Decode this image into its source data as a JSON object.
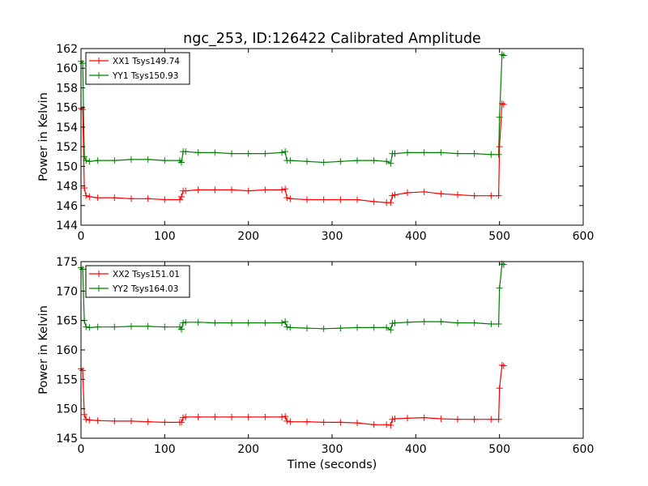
{
  "title": "ngc_253, ID:126422 Calibrated Amplitude",
  "chart_data": [
    {
      "type": "line",
      "title": "ngc_253, ID:126422 Calibrated Amplitude",
      "xlabel": "",
      "ylabel": "Power in Kelvin",
      "xlim": [
        0,
        600
      ],
      "ylim": [
        144,
        162
      ],
      "xticks": [
        0,
        100,
        200,
        300,
        400,
        500,
        600
      ],
      "yticks": [
        144,
        146,
        148,
        150,
        152,
        154,
        156,
        158,
        160,
        162
      ],
      "legend_position": "top-left",
      "series": [
        {
          "name": "XX1 Tsys149.74",
          "color": "#ff0000",
          "marker": "plus",
          "x": [
            0,
            2,
            4,
            6,
            10,
            20,
            40,
            60,
            80,
            100,
            118,
            120,
            122,
            125,
            140,
            160,
            180,
            200,
            220,
            240,
            244,
            246,
            250,
            270,
            290,
            310,
            330,
            350,
            365,
            370,
            372,
            375,
            390,
            410,
            430,
            450,
            470,
            490,
            499,
            500,
            503,
            505
          ],
          "y": [
            155.9,
            155.8,
            147.8,
            147.0,
            146.9,
            146.8,
            146.8,
            146.7,
            146.7,
            146.6,
            146.6,
            146.9,
            147.5,
            147.5,
            147.6,
            147.6,
            147.6,
            147.5,
            147.6,
            147.6,
            147.7,
            146.8,
            146.7,
            146.6,
            146.6,
            146.6,
            146.6,
            146.4,
            146.3,
            146.3,
            147.0,
            147.1,
            147.3,
            147.4,
            147.2,
            147.1,
            147.0,
            147.0,
            147.0,
            152.0,
            156.4,
            156.3
          ]
        },
        {
          "name": "YY1 Tsys150.93",
          "color": "#008000",
          "marker": "plus",
          "x": [
            0,
            2,
            4,
            6,
            10,
            20,
            40,
            60,
            80,
            100,
            118,
            120,
            122,
            125,
            140,
            160,
            180,
            200,
            220,
            240,
            244,
            246,
            250,
            270,
            290,
            310,
            330,
            350,
            365,
            370,
            372,
            375,
            390,
            410,
            430,
            450,
            470,
            490,
            499,
            500,
            503,
            505
          ],
          "y": [
            160.7,
            160.5,
            151.0,
            150.6,
            150.5,
            150.6,
            150.6,
            150.7,
            150.7,
            150.6,
            150.6,
            150.4,
            151.5,
            151.5,
            151.4,
            151.4,
            151.3,
            151.3,
            151.3,
            151.4,
            151.5,
            150.6,
            150.6,
            150.5,
            150.4,
            150.5,
            150.6,
            150.6,
            150.5,
            150.3,
            151.3,
            151.3,
            151.4,
            151.4,
            151.4,
            151.3,
            151.3,
            151.2,
            151.2,
            155.0,
            161.4,
            161.3
          ]
        }
      ]
    },
    {
      "type": "line",
      "title": "",
      "xlabel": "Time (seconds)",
      "ylabel": "Power in Kelvin",
      "xlim": [
        0,
        600
      ],
      "ylim": [
        145,
        175
      ],
      "xticks": [
        0,
        100,
        200,
        300,
        400,
        500,
        600
      ],
      "yticks": [
        145,
        150,
        155,
        160,
        165,
        170,
        175
      ],
      "legend_position": "top-left",
      "series": [
        {
          "name": "XX2 Tsys151.01",
          "color": "#ff0000",
          "marker": "plus",
          "x": [
            0,
            2,
            4,
            6,
            10,
            20,
            40,
            60,
            80,
            100,
            118,
            120,
            122,
            125,
            140,
            160,
            180,
            200,
            220,
            240,
            244,
            246,
            250,
            270,
            290,
            310,
            330,
            350,
            365,
            370,
            372,
            375,
            390,
            410,
            430,
            450,
            470,
            490,
            499,
            500,
            503,
            505
          ],
          "y": [
            156.8,
            156.5,
            149.0,
            148.2,
            148.1,
            148.0,
            147.9,
            147.9,
            147.8,
            147.7,
            147.7,
            147.7,
            148.5,
            148.6,
            148.6,
            148.6,
            148.6,
            148.6,
            148.6,
            148.6,
            148.7,
            147.9,
            147.8,
            147.8,
            147.7,
            147.7,
            147.6,
            147.3,
            147.3,
            147.2,
            148.2,
            148.3,
            148.4,
            148.5,
            148.3,
            148.2,
            148.2,
            148.2,
            148.2,
            153.5,
            157.4,
            157.3
          ]
        },
        {
          "name": "YY2 Tsys164.03",
          "color": "#008000",
          "marker": "plus",
          "x": [
            0,
            2,
            4,
            6,
            10,
            20,
            40,
            60,
            80,
            100,
            118,
            120,
            122,
            125,
            140,
            160,
            180,
            200,
            220,
            240,
            244,
            246,
            250,
            270,
            290,
            310,
            330,
            350,
            365,
            370,
            372,
            375,
            390,
            410,
            430,
            450,
            470,
            490,
            499,
            500,
            503,
            505
          ],
          "y": [
            174.0,
            173.7,
            165.0,
            163.9,
            163.8,
            163.9,
            163.9,
            164.0,
            164.0,
            163.9,
            163.9,
            163.5,
            164.6,
            164.7,
            164.7,
            164.6,
            164.6,
            164.6,
            164.6,
            164.6,
            164.8,
            163.9,
            163.8,
            163.7,
            163.6,
            163.7,
            163.8,
            163.8,
            163.8,
            163.4,
            164.5,
            164.6,
            164.7,
            164.8,
            164.8,
            164.6,
            164.6,
            164.4,
            164.4,
            170.5,
            174.6,
            174.5
          ]
        }
      ]
    }
  ]
}
